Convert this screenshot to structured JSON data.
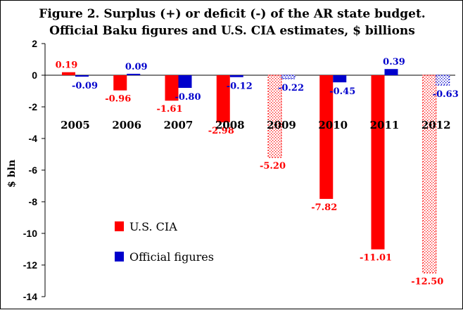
{
  "chart_data": {
    "type": "bar",
    "title_line1": "Figure 2. Surplus (+) or deficit (-) of the AR state budget.",
    "title_line2": "Official Baku figures and U.S. CIA estimates, $ billions",
    "ylabel": "$ bln",
    "ylim": [
      -14,
      2
    ],
    "yticks": [
      "2",
      "0",
      "-2",
      "-4",
      "-6",
      "-8",
      "-10",
      "-12",
      "-14"
    ],
    "ytick_values": [
      2,
      0,
      -2,
      -4,
      -6,
      -8,
      -10,
      -12,
      -14
    ],
    "categories": [
      "2005",
      "2006",
      "2007",
      "2008",
      "2009",
      "2010",
      "2011",
      "2012"
    ],
    "series": [
      {
        "name": "U.S. CIA",
        "color": "#ff0000",
        "values": [
          0.19,
          -0.96,
          -1.61,
          -2.98,
          -5.2,
          -7.82,
          -11.01,
          -12.5
        ],
        "labels": [
          "0.19",
          "-0.96",
          "-1.61",
          "-2.98",
          "-5.20",
          "-7.82",
          "-11.01",
          "-12.50"
        ],
        "estimated": [
          false,
          false,
          false,
          false,
          true,
          false,
          false,
          true
        ]
      },
      {
        "name": "Official figures",
        "color": "#0000cc",
        "values": [
          -0.09,
          0.09,
          -0.8,
          -0.12,
          -0.22,
          -0.45,
          0.39,
          -0.63
        ],
        "labels": [
          "-0.09",
          "0.09",
          "-0.80",
          "-0.12",
          "-0.22",
          "-0.45",
          "0.39",
          "-0.63"
        ],
        "estimated": [
          false,
          false,
          false,
          false,
          true,
          false,
          false,
          true
        ]
      }
    ],
    "legend_position": "bottom-left"
  }
}
